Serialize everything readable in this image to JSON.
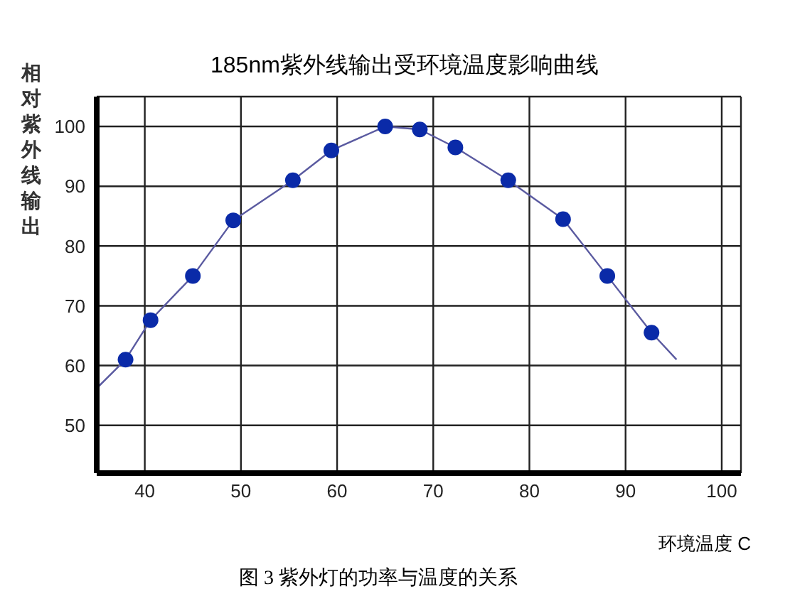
{
  "chart_data": {
    "type": "line",
    "title": "185nm紫外线输出受环境温度影响曲线",
    "xlabel": "环境温度 C",
    "ylabel": "相对紫外线输出",
    "annotations": [
      "图 3 紫外灯的功率与温度的关系"
    ],
    "xlim": [
      35,
      102
    ],
    "ylim": [
      42,
      105
    ],
    "xticks": [
      40,
      50,
      60,
      70,
      80,
      90,
      100
    ],
    "yticks": [
      50,
      60,
      70,
      80,
      90,
      100
    ],
    "grid": true,
    "series": [
      {
        "color": "#5a5aa0",
        "marker": "none",
        "x": [
          35,
          38,
          40.6,
          45,
          49.2,
          55.4,
          59.4,
          65,
          68.6,
          72.3,
          77.8,
          83.5,
          88.1,
          92.7,
          95.3
        ],
        "values": [
          56.2,
          61,
          67.6,
          75,
          84.3,
          91,
          96,
          100,
          99.5,
          96.5,
          91,
          84.5,
          75,
          65.5,
          61
        ]
      },
      {
        "type": "scatter",
        "color": "#0a2aa8",
        "marker": "circle",
        "x": [
          38,
          40.6,
          45,
          49.2,
          55.4,
          59.4,
          65,
          68.6,
          72.3,
          77.8,
          83.5,
          88.1,
          92.7
        ],
        "values": [
          61,
          67.6,
          75,
          84.3,
          91,
          96,
          100,
          99.5,
          96.5,
          91,
          84.5,
          75,
          65.5
        ]
      }
    ]
  }
}
